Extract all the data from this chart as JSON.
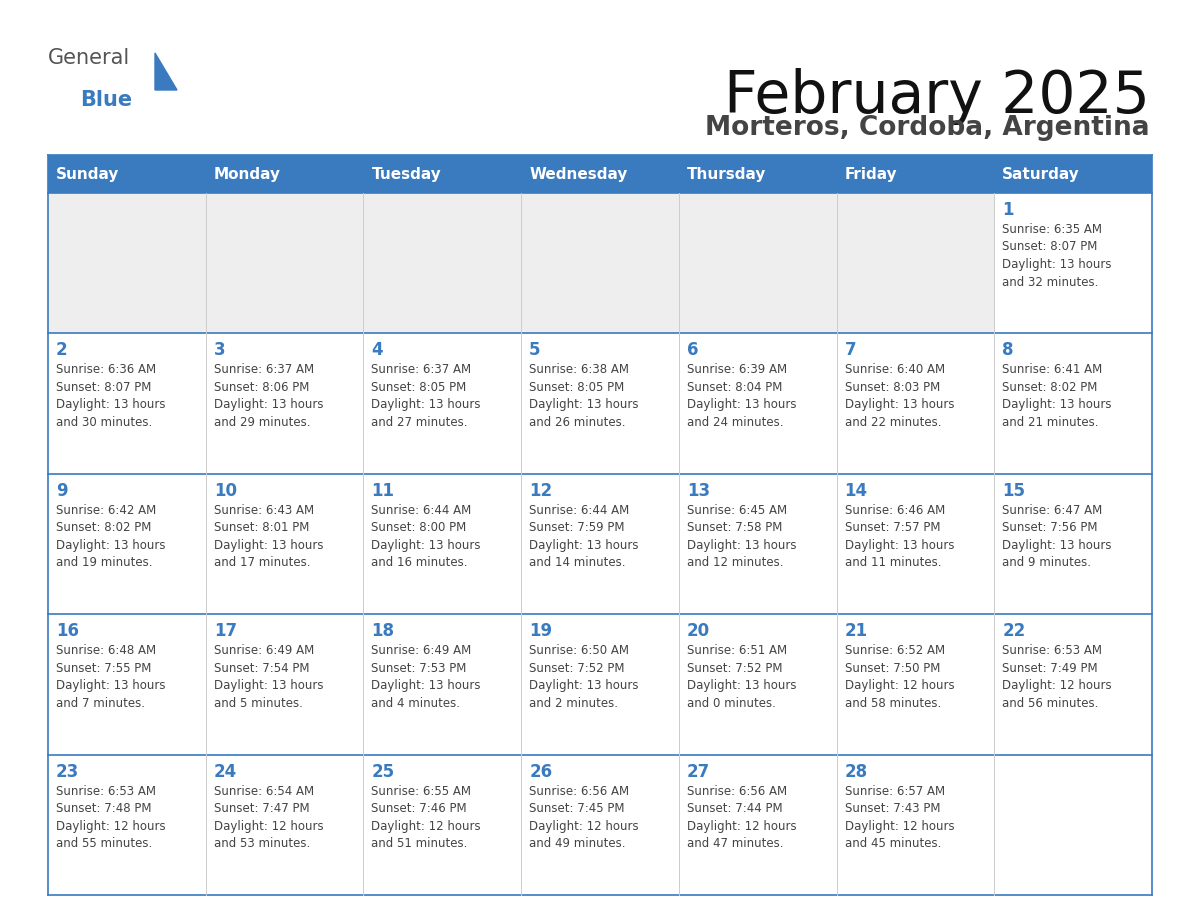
{
  "title": "February 2025",
  "subtitle": "Morteros, Cordoba, Argentina",
  "header_color": "#3a7abf",
  "header_text_color": "#ffffff",
  "days_of_week": [
    "Sunday",
    "Monday",
    "Tuesday",
    "Wednesday",
    "Thursday",
    "Friday",
    "Saturday"
  ],
  "border_color": "#3a7abf",
  "row_separator_color": "#3a7abf",
  "col_separator_color": "#cccccc",
  "day_num_color": "#3a7abf",
  "text_color": "#444444",
  "title_color": "#111111",
  "subtitle_color": "#444444",
  "empty_cell_bg": "#eeeeee",
  "filled_cell_bg": "#ffffff",
  "logo_general_color": "#555555",
  "logo_blue_color": "#3a7abf",
  "logo_triangle_color": "#3a7abf",
  "weeks": [
    [
      {
        "day": null,
        "info": null
      },
      {
        "day": null,
        "info": null
      },
      {
        "day": null,
        "info": null
      },
      {
        "day": null,
        "info": null
      },
      {
        "day": null,
        "info": null
      },
      {
        "day": null,
        "info": null
      },
      {
        "day": 1,
        "info": "Sunrise: 6:35 AM\nSunset: 8:07 PM\nDaylight: 13 hours\nand 32 minutes."
      }
    ],
    [
      {
        "day": 2,
        "info": "Sunrise: 6:36 AM\nSunset: 8:07 PM\nDaylight: 13 hours\nand 30 minutes."
      },
      {
        "day": 3,
        "info": "Sunrise: 6:37 AM\nSunset: 8:06 PM\nDaylight: 13 hours\nand 29 minutes."
      },
      {
        "day": 4,
        "info": "Sunrise: 6:37 AM\nSunset: 8:05 PM\nDaylight: 13 hours\nand 27 minutes."
      },
      {
        "day": 5,
        "info": "Sunrise: 6:38 AM\nSunset: 8:05 PM\nDaylight: 13 hours\nand 26 minutes."
      },
      {
        "day": 6,
        "info": "Sunrise: 6:39 AM\nSunset: 8:04 PM\nDaylight: 13 hours\nand 24 minutes."
      },
      {
        "day": 7,
        "info": "Sunrise: 6:40 AM\nSunset: 8:03 PM\nDaylight: 13 hours\nand 22 minutes."
      },
      {
        "day": 8,
        "info": "Sunrise: 6:41 AM\nSunset: 8:02 PM\nDaylight: 13 hours\nand 21 minutes."
      }
    ],
    [
      {
        "day": 9,
        "info": "Sunrise: 6:42 AM\nSunset: 8:02 PM\nDaylight: 13 hours\nand 19 minutes."
      },
      {
        "day": 10,
        "info": "Sunrise: 6:43 AM\nSunset: 8:01 PM\nDaylight: 13 hours\nand 17 minutes."
      },
      {
        "day": 11,
        "info": "Sunrise: 6:44 AM\nSunset: 8:00 PM\nDaylight: 13 hours\nand 16 minutes."
      },
      {
        "day": 12,
        "info": "Sunrise: 6:44 AM\nSunset: 7:59 PM\nDaylight: 13 hours\nand 14 minutes."
      },
      {
        "day": 13,
        "info": "Sunrise: 6:45 AM\nSunset: 7:58 PM\nDaylight: 13 hours\nand 12 minutes."
      },
      {
        "day": 14,
        "info": "Sunrise: 6:46 AM\nSunset: 7:57 PM\nDaylight: 13 hours\nand 11 minutes."
      },
      {
        "day": 15,
        "info": "Sunrise: 6:47 AM\nSunset: 7:56 PM\nDaylight: 13 hours\nand 9 minutes."
      }
    ],
    [
      {
        "day": 16,
        "info": "Sunrise: 6:48 AM\nSunset: 7:55 PM\nDaylight: 13 hours\nand 7 minutes."
      },
      {
        "day": 17,
        "info": "Sunrise: 6:49 AM\nSunset: 7:54 PM\nDaylight: 13 hours\nand 5 minutes."
      },
      {
        "day": 18,
        "info": "Sunrise: 6:49 AM\nSunset: 7:53 PM\nDaylight: 13 hours\nand 4 minutes."
      },
      {
        "day": 19,
        "info": "Sunrise: 6:50 AM\nSunset: 7:52 PM\nDaylight: 13 hours\nand 2 minutes."
      },
      {
        "day": 20,
        "info": "Sunrise: 6:51 AM\nSunset: 7:52 PM\nDaylight: 13 hours\nand 0 minutes."
      },
      {
        "day": 21,
        "info": "Sunrise: 6:52 AM\nSunset: 7:50 PM\nDaylight: 12 hours\nand 58 minutes."
      },
      {
        "day": 22,
        "info": "Sunrise: 6:53 AM\nSunset: 7:49 PM\nDaylight: 12 hours\nand 56 minutes."
      }
    ],
    [
      {
        "day": 23,
        "info": "Sunrise: 6:53 AM\nSunset: 7:48 PM\nDaylight: 12 hours\nand 55 minutes."
      },
      {
        "day": 24,
        "info": "Sunrise: 6:54 AM\nSunset: 7:47 PM\nDaylight: 12 hours\nand 53 minutes."
      },
      {
        "day": 25,
        "info": "Sunrise: 6:55 AM\nSunset: 7:46 PM\nDaylight: 12 hours\nand 51 minutes."
      },
      {
        "day": 26,
        "info": "Sunrise: 6:56 AM\nSunset: 7:45 PM\nDaylight: 12 hours\nand 49 minutes."
      },
      {
        "day": 27,
        "info": "Sunrise: 6:56 AM\nSunset: 7:44 PM\nDaylight: 12 hours\nand 47 minutes."
      },
      {
        "day": 28,
        "info": "Sunrise: 6:57 AM\nSunset: 7:43 PM\nDaylight: 12 hours\nand 45 minutes."
      },
      {
        "day": null,
        "info": null
      }
    ]
  ]
}
